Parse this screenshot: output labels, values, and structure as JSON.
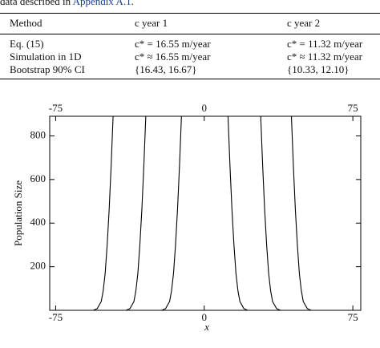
{
  "intro": {
    "text": "data described in",
    "link": "Appendix A.1",
    "end": "."
  },
  "table": {
    "header": [
      "Method",
      "c year 1",
      "c year 2"
    ],
    "rows": [
      [
        "Eq. (15)",
        "c* = 16.55 m/year",
        "c* = 11.32 m/year"
      ],
      [
        "Simulation in 1D",
        "c* ≈ 16.55 m/year",
        "c* ≈ 11.32 m/year"
      ],
      [
        "Bootstrap 90% CI",
        "{16.43, 16.67}",
        "{10.33, 12.10}"
      ]
    ]
  },
  "chart_data": {
    "type": "line",
    "xlabel": "x",
    "ylabel": "Population Size",
    "xlim": [
      -78,
      79
    ],
    "ylim": [
      0,
      890
    ],
    "xticks": [
      -75,
      0,
      75
    ],
    "yticks": [
      200,
      400,
      600,
      800
    ],
    "series": [
      {
        "color": "#000000",
        "x": [
          -56,
          -54,
          -52,
          -51,
          -50,
          -49,
          -48,
          -47,
          -46
        ],
        "values": [
          0,
          8,
          40,
          90,
          170,
          300,
          460,
          660,
          890
        ]
      },
      {
        "color": "#000000",
        "x": [
          -39.5,
          -37.5,
          -35.5,
          -34.5,
          -33.5,
          -32.5,
          -31.5,
          -30.5,
          -29.5
        ],
        "values": [
          0,
          8,
          40,
          90,
          170,
          300,
          460,
          660,
          890
        ]
      },
      {
        "color": "#000000",
        "x": [
          -21.5,
          -19.5,
          -17.5,
          -16.5,
          -15.5,
          -14.5,
          -13.5,
          -12.5,
          -11.5
        ],
        "values": [
          0,
          8,
          40,
          90,
          170,
          300,
          460,
          660,
          890
        ]
      },
      {
        "color": "#000000",
        "x": [
          22,
          20,
          18,
          17,
          16,
          15,
          14,
          13,
          12
        ],
        "values": [
          0,
          8,
          40,
          90,
          170,
          300,
          460,
          660,
          890
        ]
      },
      {
        "color": "#000000",
        "x": [
          38.5,
          36.5,
          34.5,
          33.5,
          32.5,
          31.5,
          30.5,
          29.5,
          28.5
        ],
        "values": [
          0,
          8,
          40,
          90,
          170,
          300,
          460,
          660,
          890
        ]
      },
      {
        "color": "#000000",
        "x": [
          54,
          52,
          50,
          49,
          48,
          47,
          46,
          45,
          44
        ],
        "values": [
          0,
          8,
          40,
          90,
          170,
          300,
          460,
          660,
          890
        ]
      }
    ]
  }
}
